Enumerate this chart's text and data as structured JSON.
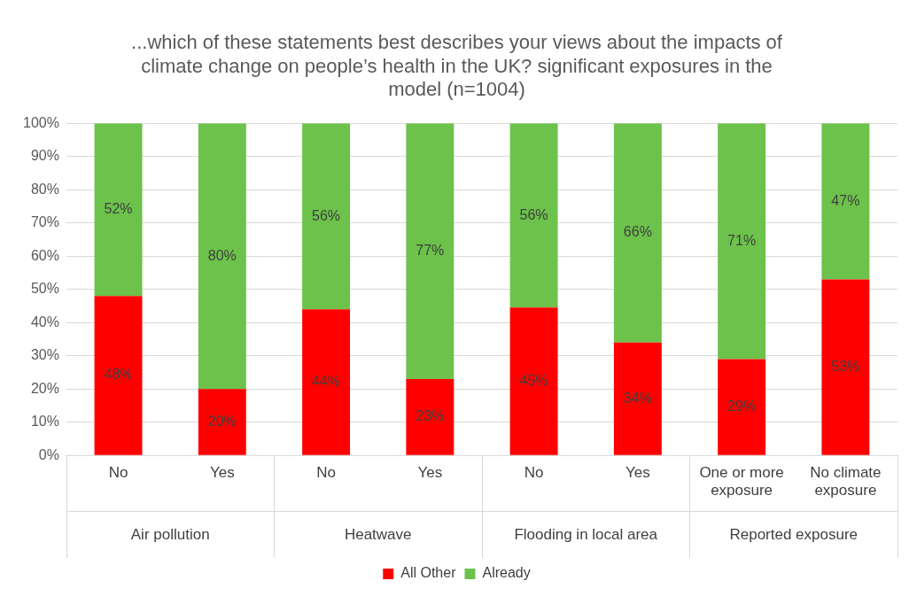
{
  "chart_data": {
    "type": "bar",
    "stacked": true,
    "title": "...which of these statements best describes your views about the impacts of climate change on people’s health in the UK? significant exposures in the model (n=1004)",
    "categories": [
      "No",
      "Yes",
      "No",
      "Yes",
      "No",
      "Yes",
      "One or more exposure",
      "No climate exposure"
    ],
    "annotations": [
      "Air pollution",
      "Heatwave",
      "Flooding in local area",
      "Reported exposure"
    ],
    "series": [
      {
        "name": "All Other",
        "color": "#ff0000",
        "values": [
          48,
          20,
          44,
          23,
          44.5,
          34,
          29,
          53
        ],
        "value_labels": [
          "48%",
          "20%",
          "44%",
          "23%",
          "45%",
          "34%",
          "29%",
          "53%"
        ]
      },
      {
        "name": "Already",
        "color": "#6cc24a",
        "values": [
          52,
          80,
          56,
          77,
          55.5,
          66,
          71,
          47
        ],
        "value_labels": [
          "52%",
          "80%",
          "56%",
          "77%",
          "56%",
          "66%",
          "71%",
          "47%"
        ]
      }
    ],
    "ylim": [
      0,
      100
    ],
    "yticks": [
      {
        "value": 0,
        "label": "0%"
      },
      {
        "value": 10,
        "label": "10%"
      },
      {
        "value": 20,
        "label": "20%"
      },
      {
        "value": 30,
        "label": "30%"
      },
      {
        "value": 40,
        "label": "40%"
      },
      {
        "value": 50,
        "label": "50%"
      },
      {
        "value": 60,
        "label": "60%"
      },
      {
        "value": 70,
        "label": "70%"
      },
      {
        "value": 80,
        "label": "80%"
      },
      {
        "value": 90,
        "label": "90%"
      },
      {
        "value": 100,
        "label": "100%"
      }
    ],
    "grid": "y",
    "legend": "bottom"
  }
}
